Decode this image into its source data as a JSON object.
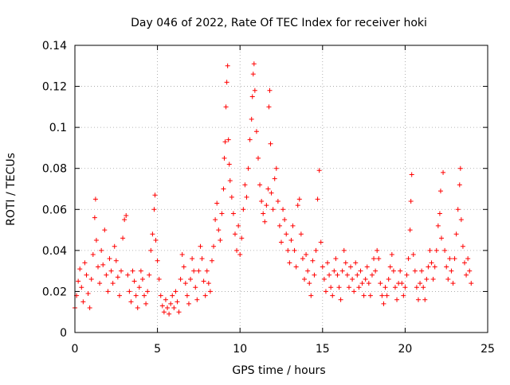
{
  "chart_data": {
    "type": "scatter",
    "title": "Day 046 of 2022, Rate Of TEC Index for receiver hoki",
    "xlabel": "GPS time / hours",
    "ylabel": "ROTI / TECUs",
    "xlim": [
      0,
      25
    ],
    "ylim": [
      0,
      0.14
    ],
    "x_ticks": [
      {
        "value": 0,
        "label": "0"
      },
      {
        "value": 5,
        "label": "5"
      },
      {
        "value": 10,
        "label": "10"
      },
      {
        "value": 15,
        "label": "15"
      },
      {
        "value": 20,
        "label": "20"
      },
      {
        "value": 25,
        "label": "25"
      }
    ],
    "y_ticks": [
      {
        "value": 0,
        "label": "0"
      },
      {
        "value": 0.02,
        "label": "0.02"
      },
      {
        "value": 0.04,
        "label": "0.04"
      },
      {
        "value": 0.06,
        "label": "0.06"
      },
      {
        "value": 0.08,
        "label": "0.08"
      },
      {
        "value": 0.1,
        "label": "0.1"
      },
      {
        "value": 0.12,
        "label": "0.12"
      },
      {
        "value": 0.14,
        "label": "0.14"
      }
    ],
    "grid": true,
    "marker": "+",
    "series": [
      {
        "name": "ROTI",
        "color": "#ff0000",
        "points": [
          [
            0.0,
            0.012
          ],
          [
            0.1,
            0.018
          ],
          [
            0.2,
            0.025
          ],
          [
            0.3,
            0.031
          ],
          [
            0.4,
            0.022
          ],
          [
            0.5,
            0.015
          ],
          [
            0.6,
            0.034
          ],
          [
            0.7,
            0.028
          ],
          [
            0.8,
            0.019
          ],
          [
            0.9,
            0.012
          ],
          [
            1.0,
            0.026
          ],
          [
            1.1,
            0.038
          ],
          [
            1.2,
            0.056
          ],
          [
            1.25,
            0.065
          ],
          [
            1.3,
            0.045
          ],
          [
            1.4,
            0.032
          ],
          [
            1.5,
            0.024
          ],
          [
            1.6,
            0.04
          ],
          [
            1.7,
            0.033
          ],
          [
            1.8,
            0.05
          ],
          [
            1.9,
            0.028
          ],
          [
            2.0,
            0.02
          ],
          [
            2.1,
            0.036
          ],
          [
            2.2,
            0.03
          ],
          [
            2.3,
            0.024
          ],
          [
            2.4,
            0.042
          ],
          [
            2.5,
            0.035
          ],
          [
            2.6,
            0.027
          ],
          [
            2.7,
            0.018
          ],
          [
            2.8,
            0.03
          ],
          [
            2.9,
            0.046
          ],
          [
            3.0,
            0.055
          ],
          [
            3.1,
            0.057
          ],
          [
            3.2,
            0.028
          ],
          [
            3.3,
            0.02
          ],
          [
            3.4,
            0.015
          ],
          [
            3.5,
            0.03
          ],
          [
            3.6,
            0.025
          ],
          [
            3.7,
            0.018
          ],
          [
            3.8,
            0.012
          ],
          [
            3.9,
            0.022
          ],
          [
            4.0,
            0.03
          ],
          [
            4.1,
            0.026
          ],
          [
            4.2,
            0.018
          ],
          [
            4.3,
            0.014
          ],
          [
            4.4,
            0.02
          ],
          [
            4.5,
            0.028
          ],
          [
            4.6,
            0.04
          ],
          [
            4.7,
            0.048
          ],
          [
            4.8,
            0.06
          ],
          [
            4.85,
            0.067
          ],
          [
            4.9,
            0.045
          ],
          [
            5.0,
            0.035
          ],
          [
            5.1,
            0.026
          ],
          [
            5.2,
            0.018
          ],
          [
            5.3,
            0.013
          ],
          [
            5.4,
            0.01
          ],
          [
            5.5,
            0.016
          ],
          [
            5.6,
            0.012
          ],
          [
            5.7,
            0.009
          ],
          [
            5.8,
            0.014
          ],
          [
            5.9,
            0.018
          ],
          [
            6.0,
            0.012
          ],
          [
            6.1,
            0.02
          ],
          [
            6.2,
            0.015
          ],
          [
            6.3,
            0.01
          ],
          [
            6.4,
            0.026
          ],
          [
            6.5,
            0.038
          ],
          [
            6.6,
            0.032
          ],
          [
            6.7,
            0.024
          ],
          [
            6.8,
            0.018
          ],
          [
            6.9,
            0.014
          ],
          [
            7.0,
            0.026
          ],
          [
            7.1,
            0.036
          ],
          [
            7.2,
            0.03
          ],
          [
            7.3,
            0.022
          ],
          [
            7.4,
            0.016
          ],
          [
            7.5,
            0.03
          ],
          [
            7.6,
            0.042
          ],
          [
            7.7,
            0.036
          ],
          [
            7.8,
            0.025
          ],
          [
            7.9,
            0.018
          ],
          [
            8.0,
            0.03
          ],
          [
            8.1,
            0.024
          ],
          [
            8.2,
            0.02
          ],
          [
            8.3,
            0.035
          ],
          [
            8.4,
            0.042
          ],
          [
            8.5,
            0.055
          ],
          [
            8.6,
            0.063
          ],
          [
            8.7,
            0.05
          ],
          [
            8.8,
            0.045
          ],
          [
            8.9,
            0.058
          ],
          [
            9.0,
            0.07
          ],
          [
            9.05,
            0.085
          ],
          [
            9.1,
            0.093
          ],
          [
            9.15,
            0.11
          ],
          [
            9.2,
            0.122
          ],
          [
            9.25,
            0.13
          ],
          [
            9.3,
            0.094
          ],
          [
            9.35,
            0.082
          ],
          [
            9.4,
            0.074
          ],
          [
            9.5,
            0.066
          ],
          [
            9.6,
            0.058
          ],
          [
            9.7,
            0.048
          ],
          [
            9.8,
            0.04
          ],
          [
            9.9,
            0.052
          ],
          [
            10.0,
            0.038
          ],
          [
            10.1,
            0.046
          ],
          [
            10.2,
            0.06
          ],
          [
            10.3,
            0.072
          ],
          [
            10.4,
            0.066
          ],
          [
            10.5,
            0.08
          ],
          [
            10.6,
            0.094
          ],
          [
            10.7,
            0.104
          ],
          [
            10.75,
            0.115
          ],
          [
            10.8,
            0.126
          ],
          [
            10.85,
            0.131
          ],
          [
            10.9,
            0.118
          ],
          [
            11.0,
            0.098
          ],
          [
            11.1,
            0.085
          ],
          [
            11.2,
            0.072
          ],
          [
            11.3,
            0.064
          ],
          [
            11.4,
            0.058
          ],
          [
            11.5,
            0.054
          ],
          [
            11.6,
            0.062
          ],
          [
            11.7,
            0.07
          ],
          [
            11.75,
            0.11
          ],
          [
            11.8,
            0.118
          ],
          [
            11.85,
            0.092
          ],
          [
            11.9,
            0.068
          ],
          [
            12.0,
            0.06
          ],
          [
            12.1,
            0.075
          ],
          [
            12.2,
            0.08
          ],
          [
            12.3,
            0.064
          ],
          [
            12.4,
            0.052
          ],
          [
            12.5,
            0.044
          ],
          [
            12.6,
            0.06
          ],
          [
            12.7,
            0.055
          ],
          [
            12.8,
            0.048
          ],
          [
            12.9,
            0.04
          ],
          [
            13.0,
            0.034
          ],
          [
            13.1,
            0.045
          ],
          [
            13.2,
            0.052
          ],
          [
            13.3,
            0.04
          ],
          [
            13.4,
            0.032
          ],
          [
            13.5,
            0.062
          ],
          [
            13.6,
            0.065
          ],
          [
            13.7,
            0.048
          ],
          [
            13.8,
            0.036
          ],
          [
            13.9,
            0.026
          ],
          [
            14.0,
            0.038
          ],
          [
            14.1,
            0.03
          ],
          [
            14.2,
            0.024
          ],
          [
            14.3,
            0.018
          ],
          [
            14.4,
            0.035
          ],
          [
            14.5,
            0.028
          ],
          [
            14.6,
            0.04
          ],
          [
            14.7,
            0.065
          ],
          [
            14.8,
            0.079
          ],
          [
            14.9,
            0.044
          ],
          [
            15.0,
            0.032
          ],
          [
            15.1,
            0.026
          ],
          [
            15.2,
            0.02
          ],
          [
            15.3,
            0.034
          ],
          [
            15.4,
            0.028
          ],
          [
            15.5,
            0.022
          ],
          [
            15.6,
            0.018
          ],
          [
            15.7,
            0.03
          ],
          [
            15.8,
            0.036
          ],
          [
            15.9,
            0.028
          ],
          [
            16.0,
            0.022
          ],
          [
            16.1,
            0.016
          ],
          [
            16.2,
            0.03
          ],
          [
            16.3,
            0.04
          ],
          [
            16.4,
            0.034
          ],
          [
            16.5,
            0.028
          ],
          [
            16.6,
            0.022
          ],
          [
            16.7,
            0.032
          ],
          [
            16.8,
            0.026
          ],
          [
            16.9,
            0.02
          ],
          [
            17.0,
            0.034
          ],
          [
            17.1,
            0.028
          ],
          [
            17.2,
            0.022
          ],
          [
            17.3,
            0.03
          ],
          [
            17.4,
            0.024
          ],
          [
            17.5,
            0.018
          ],
          [
            17.6,
            0.026
          ],
          [
            17.7,
            0.032
          ],
          [
            17.8,
            0.024
          ],
          [
            17.9,
            0.018
          ],
          [
            18.0,
            0.028
          ],
          [
            18.1,
            0.036
          ],
          [
            18.2,
            0.03
          ],
          [
            18.3,
            0.04
          ],
          [
            18.4,
            0.036
          ],
          [
            18.5,
            0.024
          ],
          [
            18.6,
            0.018
          ],
          [
            18.7,
            0.014
          ],
          [
            18.8,
            0.022
          ],
          [
            18.9,
            0.018
          ],
          [
            19.0,
            0.026
          ],
          [
            19.1,
            0.032
          ],
          [
            19.2,
            0.038
          ],
          [
            19.3,
            0.03
          ],
          [
            19.4,
            0.022
          ],
          [
            19.5,
            0.016
          ],
          [
            19.6,
            0.024
          ],
          [
            19.7,
            0.03
          ],
          [
            19.8,
            0.024
          ],
          [
            19.9,
            0.018
          ],
          [
            20.0,
            0.022
          ],
          [
            20.1,
            0.028
          ],
          [
            20.2,
            0.036
          ],
          [
            20.3,
            0.05
          ],
          [
            20.35,
            0.064
          ],
          [
            20.4,
            0.077
          ],
          [
            20.5,
            0.038
          ],
          [
            20.6,
            0.03
          ],
          [
            20.7,
            0.022
          ],
          [
            20.8,
            0.016
          ],
          [
            20.9,
            0.024
          ],
          [
            21.0,
            0.03
          ],
          [
            21.1,
            0.022
          ],
          [
            21.2,
            0.016
          ],
          [
            21.3,
            0.026
          ],
          [
            21.4,
            0.032
          ],
          [
            21.5,
            0.04
          ],
          [
            21.6,
            0.034
          ],
          [
            21.7,
            0.026
          ],
          [
            21.8,
            0.032
          ],
          [
            21.9,
            0.04
          ],
          [
            22.0,
            0.052
          ],
          [
            22.1,
            0.058
          ],
          [
            22.15,
            0.069
          ],
          [
            22.2,
            0.046
          ],
          [
            22.3,
            0.078
          ],
          [
            22.4,
            0.04
          ],
          [
            22.5,
            0.032
          ],
          [
            22.6,
            0.026
          ],
          [
            22.7,
            0.036
          ],
          [
            22.8,
            0.03
          ],
          [
            22.9,
            0.024
          ],
          [
            23.0,
            0.036
          ],
          [
            23.1,
            0.048
          ],
          [
            23.2,
            0.06
          ],
          [
            23.3,
            0.072
          ],
          [
            23.35,
            0.08
          ],
          [
            23.4,
            0.055
          ],
          [
            23.5,
            0.042
          ],
          [
            23.6,
            0.034
          ],
          [
            23.7,
            0.028
          ],
          [
            23.8,
            0.036
          ],
          [
            23.9,
            0.03
          ],
          [
            24.0,
            0.024
          ]
        ]
      }
    ]
  }
}
